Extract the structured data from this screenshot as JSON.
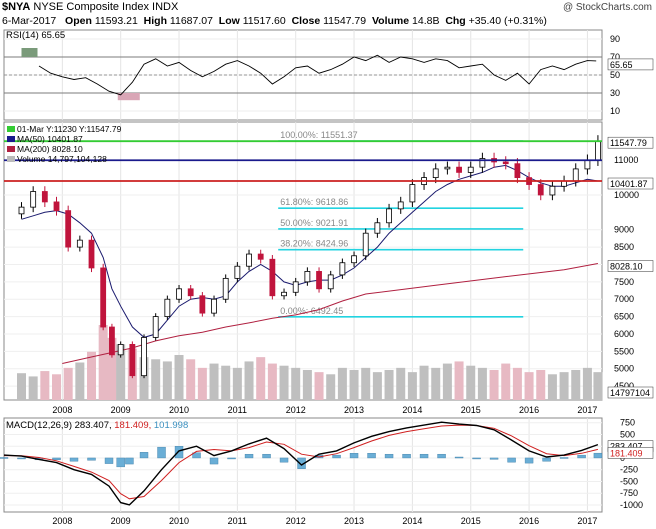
{
  "header": {
    "symbol": "$NYA",
    "name": "NYSE Composite Index",
    "exchange": "INDX",
    "watermark": "@ StockCharts.com",
    "date": "6-Mar-2017",
    "open_label": "Open",
    "open": "11593.21",
    "high_label": "High",
    "high": "11687.07",
    "low_label": "Low",
    "low": "11517.60",
    "close_label": "Close",
    "close": "11547.79",
    "volume_label": "Volume",
    "volume": "14.8B",
    "chg_label": "Chg",
    "chg": "+35.40 (+0.31%)"
  },
  "chart_data": [
    {
      "panel": "rsi",
      "type": "line",
      "title": "RSI(14) 65.65",
      "value": 65.65,
      "yticks": [
        "90",
        "70",
        "50",
        "30",
        "10"
      ],
      "ylim": [
        0,
        100
      ],
      "reference_lines": [
        70,
        30
      ],
      "value_label": "65.65",
      "x": [
        "2007.6",
        "2007.8",
        "2008.0",
        "2008.2",
        "2008.4",
        "2008.6",
        "2008.8",
        "2009.0",
        "2009.2",
        "2009.4",
        "2009.6",
        "2009.8",
        "2010.0",
        "2010.2",
        "2010.4",
        "2010.6",
        "2010.8",
        "2011.0",
        "2011.2",
        "2011.4",
        "2011.6",
        "2011.8",
        "2012.0",
        "2012.2",
        "2012.4",
        "2012.6",
        "2012.8",
        "2013.0",
        "2013.2",
        "2013.4",
        "2013.6",
        "2013.8",
        "2014.0",
        "2014.2",
        "2014.4",
        "2014.6",
        "2014.8",
        "2015.0",
        "2015.2",
        "2015.4",
        "2015.6",
        "2015.8",
        "2016.0",
        "2016.2",
        "2016.4",
        "2016.6",
        "2016.8",
        "2017.0",
        "2017.15"
      ],
      "values": [
        60,
        52,
        48,
        45,
        47,
        40,
        32,
        28,
        42,
        62,
        68,
        60,
        64,
        55,
        48,
        54,
        62,
        66,
        60,
        52,
        40,
        48,
        58,
        60,
        52,
        56,
        62,
        70,
        66,
        72,
        64,
        70,
        68,
        64,
        68,
        66,
        58,
        60,
        62,
        50,
        44,
        52,
        40,
        56,
        60,
        56,
        62,
        66,
        65.65
      ]
    },
    {
      "panel": "price",
      "type": "candlestick",
      "title": "NYSE Composite Index",
      "legend": [
        {
          "name": "01-Mar Y:11230 Y:11547.79",
          "color": "#33cc33"
        },
        {
          "name": "MA(50) 10401.87",
          "color": "#1a1a8c"
        },
        {
          "name": "MA(200) 8028.10",
          "color": "#b02040"
        },
        {
          "name": "Volume 14,797,104,128",
          "color": "#bbbbbb"
        }
      ],
      "yticks": [
        "11000",
        "10000",
        "9000",
        "8500",
        "8000",
        "7500",
        "7000",
        "6500",
        "6000",
        "5500",
        "5000",
        "4500"
      ],
      "ylim": [
        4100,
        12100
      ],
      "xticks": [
        "2008",
        "2009",
        "2010",
        "2011",
        "2012",
        "2013",
        "2014",
        "2015",
        "2016",
        "2017"
      ],
      "close_x": [
        "2007.3",
        "2007.5",
        "2007.7",
        "2007.9",
        "2008.1",
        "2008.3",
        "2008.5",
        "2008.7",
        "2008.85",
        "2009.0",
        "2009.2",
        "2009.4",
        "2009.6",
        "2009.8",
        "2010.0",
        "2010.2",
        "2010.4",
        "2010.6",
        "2010.8",
        "2011.0",
        "2011.2",
        "2011.4",
        "2011.6",
        "2011.8",
        "2012.0",
        "2012.2",
        "2012.4",
        "2012.6",
        "2012.8",
        "2013.0",
        "2013.2",
        "2013.4",
        "2013.6",
        "2013.8",
        "2014.0",
        "2014.2",
        "2014.4",
        "2014.6",
        "2014.8",
        "2015.0",
        "2015.2",
        "2015.4",
        "2015.6",
        "2015.8",
        "2016.0",
        "2016.2",
        "2016.4",
        "2016.6",
        "2016.8",
        "2017.0",
        "2017.18"
      ],
      "close_values": [
        9650,
        10100,
        9800,
        9550,
        8500,
        8700,
        7900,
        6200,
        5400,
        5700,
        4800,
        5900,
        6500,
        7000,
        7300,
        7100,
        6600,
        7000,
        7600,
        7950,
        8300,
        8150,
        7100,
        7200,
        7500,
        7800,
        7300,
        7700,
        8050,
        8250,
        8900,
        9200,
        9600,
        9800,
        10300,
        10500,
        10750,
        10800,
        10650,
        10800,
        11050,
        10950,
        10900,
        10500,
        10300,
        10000,
        10250,
        10400,
        10750,
        11000,
        11547.79
      ],
      "ma50_values": [
        9300,
        9400,
        9500,
        9550,
        9450,
        9200,
        8900,
        8200,
        7300,
        6800,
        6200,
        5900,
        6000,
        6400,
        6800,
        7000,
        7050,
        7000,
        7100,
        7500,
        7800,
        8000,
        7800,
        7500,
        7400,
        7500,
        7550,
        7550,
        7700,
        7900,
        8200,
        8500,
        8900,
        9200,
        9500,
        9800,
        10100,
        10300,
        10450,
        10550,
        10650,
        10800,
        10850,
        10700,
        10500,
        10350,
        10250,
        10250,
        10350,
        10450,
        10401.87
      ],
      "ma200_values": [
        5150,
        5300,
        5450,
        5600,
        5800,
        5950,
        6050,
        6200,
        6320,
        6450,
        6550,
        6700,
        6950,
        7150,
        7400,
        7650,
        7850,
        8028.1
      ],
      "ma200_x": [
        "2008.0",
        "2008.4",
        "2008.8",
        "2009.2",
        "2009.6",
        "2010.0",
        "2010.4",
        "2010.8",
        "2011.2",
        "2011.6",
        "2012.0",
        "2012.4",
        "2012.8",
        "2013.2",
        "2014.4",
        "2015.6",
        "2016.6",
        "2017.18"
      ],
      "fibonacci": [
        {
          "label": "100.00%: 11551.37",
          "value": 11551.37
        },
        {
          "label": "61.80%: 9618.86",
          "value": 9618.86
        },
        {
          "label": "50.00%: 9021.91",
          "value": 9021.91
        },
        {
          "label": "38.20%: 8424.96",
          "value": 8424.96
        },
        {
          "label": "0.00%: 6492.45",
          "value": 6492.45
        }
      ],
      "horizontal_lines": [
        {
          "name": "green",
          "value": 11547.79,
          "color": "#33cc33"
        },
        {
          "name": "blue",
          "value": 11000,
          "color": "#1a1a8c"
        },
        {
          "name": "red",
          "value": 10401.87,
          "color": "#cc2020"
        }
      ],
      "value_labels": [
        "11547.79",
        "10401.87",
        "8028.10",
        "14797104"
      ],
      "volume_values": [
        25,
        22,
        27,
        24,
        30,
        35,
        45,
        70,
        58,
        52,
        48,
        40,
        38,
        36,
        42,
        38,
        30,
        34,
        32,
        30,
        36,
        40,
        34,
        32,
        30,
        28,
        26,
        24,
        30,
        28,
        30,
        26,
        28,
        30,
        26,
        32,
        30,
        34,
        36,
        32,
        30,
        28,
        34,
        30,
        26,
        28,
        24,
        26,
        28,
        30,
        26
      ]
    },
    {
      "panel": "macd",
      "type": "line",
      "title": "MACD(12,26,9) 283.407, 181.409, 101.998",
      "title_parts": [
        "MACD(12,26,9)",
        "283.407,",
        "181.409,",
        "101.998"
      ],
      "yticks": [
        "750",
        "500",
        "250",
        "0",
        "-250",
        "-500",
        "-750",
        "-1000"
      ],
      "ylim": [
        -1150,
        850
      ],
      "value_labels": [
        "283.407",
        "181.409"
      ],
      "xticks": [
        "2008",
        "2009",
        "2010",
        "2011",
        "2012",
        "2013",
        "2014",
        "2015",
        "2016",
        "2017"
      ],
      "x": [
        "2007.0",
        "2007.3",
        "2007.6",
        "2007.9",
        "2008.2",
        "2008.5",
        "2008.8",
        "2009.0",
        "2009.15",
        "2009.4",
        "2009.7",
        "2010.0",
        "2010.3",
        "2010.6",
        "2010.9",
        "2011.2",
        "2011.5",
        "2011.8",
        "2012.1",
        "2012.4",
        "2012.7",
        "2013.0",
        "2013.3",
        "2013.6",
        "2013.9",
        "2014.2",
        "2014.5",
        "2014.8",
        "2015.1",
        "2015.4",
        "2015.7",
        "2016.0",
        "2016.3",
        "2016.6",
        "2016.9",
        "2017.18"
      ],
      "macd": [
        60,
        40,
        -30,
        -100,
        -250,
        -350,
        -600,
        -950,
        -1000,
        -700,
        -250,
        150,
        250,
        50,
        150,
        300,
        420,
        200,
        -150,
        80,
        150,
        320,
        460,
        560,
        640,
        700,
        760,
        720,
        690,
        600,
        380,
        150,
        20,
        60,
        160,
        283.407
      ],
      "signal": [
        50,
        45,
        10,
        -60,
        -180,
        -300,
        -480,
        -760,
        -870,
        -820,
        -480,
        -100,
        140,
        180,
        150,
        220,
        340,
        290,
        80,
        20,
        90,
        220,
        360,
        480,
        560,
        620,
        680,
        700,
        690,
        630,
        470,
        260,
        90,
        50,
        100,
        181.409
      ],
      "histogram": [
        10,
        -5,
        -40,
        -40,
        -70,
        -50,
        -120,
        -190,
        -130,
        120,
        230,
        250,
        110,
        -130,
        0,
        80,
        80,
        -90,
        -230,
        60,
        60,
        100,
        100,
        80,
        80,
        80,
        80,
        20,
        0,
        -30,
        -90,
        -110,
        -70,
        10,
        60,
        101.998
      ]
    }
  ]
}
